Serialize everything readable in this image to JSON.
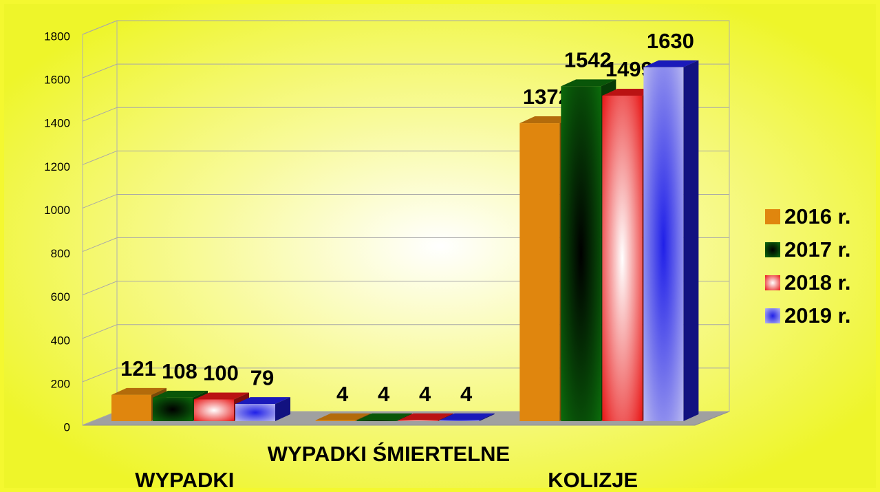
{
  "chart_data": {
    "type": "bar3d",
    "categories": [
      "WYPADKI",
      "WYPADKI ŚMIERTELNE",
      "KOLIZJE"
    ],
    "series": [
      {
        "name": "2016 r.",
        "color": "#e0860e",
        "values": [
          121,
          4,
          1372
        ]
      },
      {
        "name": "2017 r.",
        "color": "#0b6b0b",
        "values": [
          108,
          4,
          1542
        ]
      },
      {
        "name": "2018 r.",
        "color": "#e81818",
        "values": [
          100,
          4,
          1499
        ]
      },
      {
        "name": "2019 r.",
        "color": "#2020e8",
        "values": [
          79,
          4,
          1630
        ]
      }
    ],
    "ylim": [
      0,
      1800
    ],
    "yticks": [
      0,
      200,
      400,
      600,
      800,
      1000,
      1200,
      1400,
      1600,
      1800
    ],
    "grid": true,
    "legend": "right"
  }
}
